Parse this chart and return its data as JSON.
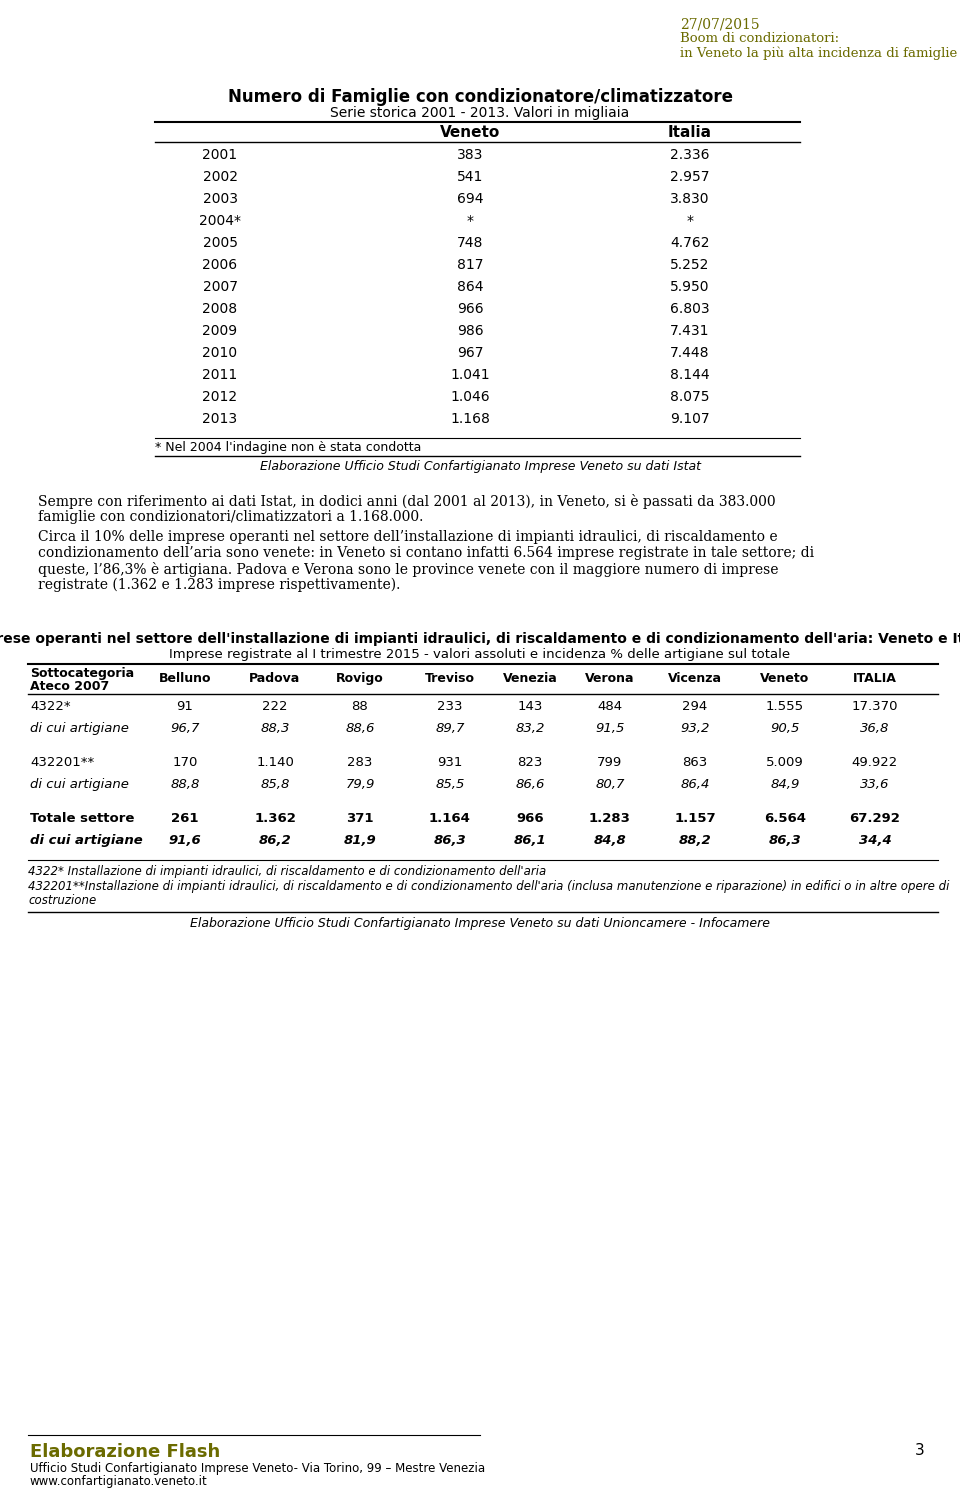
{
  "header_date": "27/07/2015",
  "header_title_line1": "Boom di condizionatori:",
  "header_title_line2": "in Veneto la più alta incidenza di famiglie con climatizzatori",
  "header_color": "#6b6b00",
  "table1_title": "Numero di Famiglie con condizionatore/climatizzatore",
  "table1_subtitle": "Serie storica 2001 - 2013. Valori in migliaia",
  "table1_col_headers": [
    "Veneto",
    "Italia"
  ],
  "table1_rows": [
    [
      "2001",
      "383",
      "2.336"
    ],
    [
      "2002",
      "541",
      "2.957"
    ],
    [
      "2003",
      "694",
      "3.830"
    ],
    [
      "2004*",
      "*",
      "*"
    ],
    [
      "2005",
      "748",
      "4.762"
    ],
    [
      "2006",
      "817",
      "5.252"
    ],
    [
      "2007",
      "864",
      "5.950"
    ],
    [
      "2008",
      "966",
      "6.803"
    ],
    [
      "2009",
      "986",
      "7.431"
    ],
    [
      "2010",
      "967",
      "7.448"
    ],
    [
      "2011",
      "1.041",
      "8.144"
    ],
    [
      "2012",
      "1.046",
      "8.075"
    ],
    [
      "2013",
      "1.168",
      "9.107"
    ]
  ],
  "table1_footnote": "* Nel 2004 l'indagine non è stata condotta",
  "table1_source": "Elaborazione Ufficio Studi Confartigianato Imprese Veneto su dati Istat",
  "para1_lines": [
    "Sempre con riferimento ai dati Istat, in dodici anni (dal 2001 al 2013), in Veneto, si è passati da 383.000",
    "famiglie con condizionatori/climatizzatori a 1.168.000."
  ],
  "para2_lines": [
    "Circa il 10% delle imprese operanti nel settore dell’installazione di impianti idraulici, di riscaldamento e",
    "condizionamento dell’aria sono venete: in Veneto si contano infatti 6.564 imprese registrate in tale settore; di",
    "queste, l’86,3% è artigiana. Padova e Verona sono le province venete con il maggiore numero di imprese",
    "registrate (1.362 e 1.283 imprese rispettivamente)."
  ],
  "table2_title": "Imprese operanti nel settore dell'installazione di impianti idraulici, di riscaldamento e di condizionamento dell'aria: Veneto e Italia",
  "table2_subtitle": "Imprese registrate al I trimestre 2015 - valori assoluti e incidenza % delle artigiane sul totale",
  "table2_col_headers": [
    "Sottocategoria\nAteco 2007",
    "Belluno",
    "Padova",
    "Rovigo",
    "Treviso",
    "Venezia",
    "Verona",
    "Vicenza",
    "Veneto",
    "ITALIA"
  ],
  "table2_rows": [
    [
      "4322*",
      "91",
      "222",
      "88",
      "233",
      "143",
      "484",
      "294",
      "1.555",
      "17.370"
    ],
    [
      "di cui artigiane",
      "96,7",
      "88,3",
      "88,6",
      "89,7",
      "83,2",
      "91,5",
      "93,2",
      "90,5",
      "36,8"
    ],
    [
      "432201**",
      "170",
      "1.140",
      "283",
      "931",
      "823",
      "799",
      "863",
      "5.009",
      "49.922"
    ],
    [
      "di cui artigiane",
      "88,8",
      "85,8",
      "79,9",
      "85,5",
      "86,6",
      "80,7",
      "86,4",
      "84,9",
      "33,6"
    ],
    [
      "Totale settore",
      "261",
      "1.362",
      "371",
      "1.164",
      "966",
      "1.283",
      "1.157",
      "6.564",
      "67.292"
    ],
    [
      "di cui artigiane",
      "91,6",
      "86,2",
      "81,9",
      "86,3",
      "86,1",
      "84,8",
      "88,2",
      "86,3",
      "34,4"
    ]
  ],
  "table2_row_styles": [
    {
      "bold": false,
      "italic": false
    },
    {
      "bold": false,
      "italic": true
    },
    {
      "bold": false,
      "italic": false
    },
    {
      "bold": false,
      "italic": true
    },
    {
      "bold": true,
      "italic": false
    },
    {
      "bold": true,
      "italic": true
    }
  ],
  "table2_footnote1": "4322* Installazione di impianti idraulici, di riscaldamento e di condizionamento dell'aria",
  "table2_footnote2_line1": "432201**Installazione di impianti idraulici, di riscaldamento e di condizionamento dell'aria (inclusa manutenzione e riparazione) in edifici o in altre opere di",
  "table2_footnote2_line2": "costruzione",
  "table2_source": "Elaborazione Ufficio Studi Confartigianato Imprese Veneto su dati Unioncamere - Infocamere",
  "footer_title": "Elaborazione Flash",
  "footer_line1": "Ufficio Studi Confartigianato Imprese Veneto- Via Torino, 99 – Mestre Venezia",
  "footer_line2": "www.confartigianato.veneto.it",
  "footer_page": "3"
}
